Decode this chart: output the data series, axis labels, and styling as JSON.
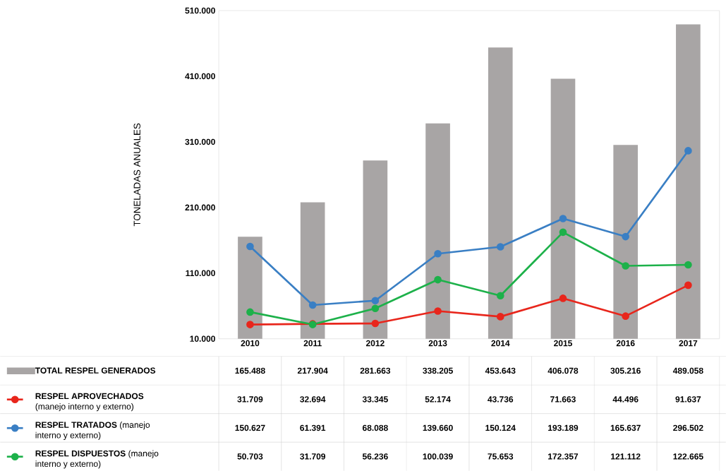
{
  "chart_data": {
    "type": "bar",
    "ylabel": "TONELADAS ANUALES",
    "categories": [
      "2010",
      "2011",
      "2012",
      "2013",
      "2014",
      "2015",
      "2016",
      "2017"
    ],
    "ylim": [
      10000,
      510000
    ],
    "yticks": [
      {
        "value": 10000,
        "label": "10.000"
      },
      {
        "value": 110000,
        "label": "110.000"
      },
      {
        "value": 210000,
        "label": "210.000"
      },
      {
        "value": 310000,
        "label": "310.000"
      },
      {
        "value": 410000,
        "label": "410.000"
      },
      {
        "value": 510000,
        "label": "510.000"
      }
    ],
    "legend": "bottom",
    "marker": "circle",
    "series": [
      {
        "name": "**TOTAL RESPEL GENERADOS**",
        "color": "#a8a5a5",
        "values": [
          165488,
          217904,
          281663,
          338205,
          453643,
          406078,
          305216,
          489058
        ],
        "value_labels": [
          "165.488",
          "217.904",
          "281.663",
          "338.205",
          "453.643",
          "406.078",
          "305.216",
          "489.058"
        ]
      },
      {
        "name": "**RESPEL APROVECHADOS** (manejo interno y externo)",
        "type": "line",
        "color": "#e8261c",
        "values": [
          31709,
          32694,
          33345,
          52174,
          43736,
          71663,
          44496,
          91637
        ],
        "value_labels": [
          "31.709",
          "32.694",
          "33.345",
          "52.174",
          "43.736",
          "71.663",
          "44.496",
          "91.637"
        ]
      },
      {
        "name": "**RESPEL TRATADOS** (manejo interno y externo)",
        "type": "line",
        "color": "#3a7fc4",
        "values": [
          150627,
          61391,
          68088,
          139660,
          150124,
          193189,
          165637,
          296502
        ],
        "value_labels": [
          "150.627",
          "61.391",
          "68.088",
          "139.660",
          "150.124",
          "193.189",
          "165.637",
          "296.502"
        ]
      },
      {
        "name": "**RESPEL DISPUESTOS** (manejo interno y externo)",
        "type": "line",
        "color": "#1db14a",
        "values": [
          50703,
          31709,
          56236,
          100039,
          75653,
          172357,
          121112,
          122665
        ],
        "value_labels": [
          "50.703",
          "31.709",
          "56.236",
          "100.039",
          "75.653",
          "172.357",
          "121.112",
          "122.665"
        ]
      }
    ]
  }
}
